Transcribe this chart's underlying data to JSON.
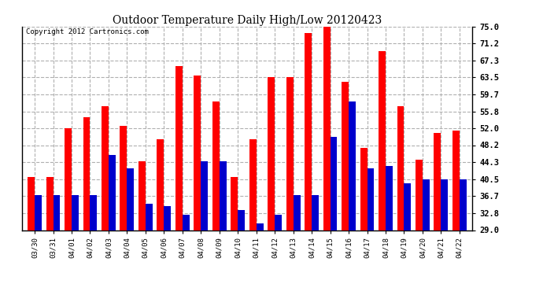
{
  "title": "Outdoor Temperature Daily High/Low 20120423",
  "copyright": "Copyright 2012 Cartronics.com",
  "categories": [
    "03/30",
    "03/31",
    "04/01",
    "04/02",
    "04/03",
    "04/04",
    "04/05",
    "04/06",
    "04/07",
    "04/08",
    "04/09",
    "04/10",
    "04/11",
    "04/12",
    "04/13",
    "04/14",
    "04/15",
    "04/16",
    "04/17",
    "04/18",
    "04/19",
    "04/20",
    "04/21",
    "04/22"
  ],
  "highs": [
    41.0,
    41.0,
    52.0,
    54.5,
    57.0,
    52.5,
    44.5,
    49.5,
    66.0,
    64.0,
    58.0,
    41.0,
    49.5,
    63.5,
    63.5,
    73.5,
    75.0,
    62.5,
    47.5,
    69.5,
    57.0,
    45.0,
    51.0,
    51.5
  ],
  "lows": [
    37.0,
    37.0,
    37.0,
    37.0,
    46.0,
    43.0,
    35.0,
    34.5,
    32.5,
    44.5,
    44.5,
    33.5,
    30.5,
    32.5,
    37.0,
    37.0,
    50.0,
    58.0,
    43.0,
    43.5,
    39.5,
    40.5,
    40.5,
    40.5
  ],
  "high_color": "#ff0000",
  "low_color": "#0000cc",
  "background_color": "#ffffff",
  "grid_color": "#b0b0b0",
  "yticks": [
    29.0,
    32.8,
    36.7,
    40.5,
    44.3,
    48.2,
    52.0,
    55.8,
    59.7,
    63.5,
    67.3,
    71.2,
    75.0
  ],
  "ymin": 29.0,
  "ymax": 75.0,
  "bar_width": 0.38
}
